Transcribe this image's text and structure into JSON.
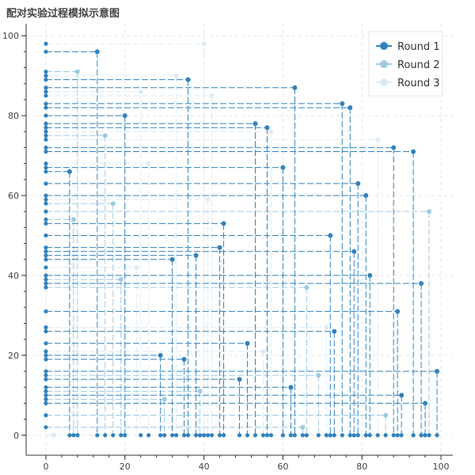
{
  "chart_data": {
    "type": "scatter",
    "title": "配对实验过程模拟示意图",
    "xlabel": "",
    "ylabel": "",
    "xlim": [
      -5,
      103
    ],
    "ylim": [
      -5,
      103
    ],
    "x_ticks": [
      0,
      20,
      40,
      60,
      80,
      100
    ],
    "y_ticks": [
      0,
      20,
      40,
      60,
      80,
      100
    ],
    "grid": true,
    "legend_position": "top-right",
    "series": [
      {
        "name": "Round 1",
        "color": "#3182bd",
        "points": [
          {
            "x": 13,
            "y": 96
          },
          {
            "x": 36,
            "y": 89
          },
          {
            "x": 63,
            "y": 87
          },
          {
            "x": 75,
            "y": 83
          },
          {
            "x": 77,
            "y": 82
          },
          {
            "x": 20,
            "y": 80
          },
          {
            "x": 53,
            "y": 78
          },
          {
            "x": 56,
            "y": 77
          },
          {
            "x": 88,
            "y": 72
          },
          {
            "x": 93,
            "y": 71
          },
          {
            "x": 60,
            "y": 67
          },
          {
            "x": 6,
            "y": 66
          },
          {
            "x": 79,
            "y": 63
          },
          {
            "x": 81,
            "y": 60
          },
          {
            "x": 45,
            "y": 53
          },
          {
            "x": 72,
            "y": 50
          },
          {
            "x": 44,
            "y": 47
          },
          {
            "x": 78,
            "y": 46
          },
          {
            "x": 38,
            "y": 45
          },
          {
            "x": 32,
            "y": 44
          },
          {
            "x": 82,
            "y": 40
          },
          {
            "x": 95,
            "y": 38
          },
          {
            "x": 89,
            "y": 31
          },
          {
            "x": 73,
            "y": 26
          },
          {
            "x": 51,
            "y": 23
          },
          {
            "x": 29,
            "y": 20
          },
          {
            "x": 35,
            "y": 19
          },
          {
            "x": 99,
            "y": 16
          },
          {
            "x": 49,
            "y": 14
          },
          {
            "x": 62,
            "y": 12
          },
          {
            "x": 90,
            "y": 10
          },
          {
            "x": 96,
            "y": 8
          }
        ]
      },
      {
        "name": "Round 2",
        "color": "#9ecae1",
        "points": [
          {
            "x": 8,
            "y": 91
          },
          {
            "x": 15,
            "y": 75
          },
          {
            "x": 17,
            "y": 58
          },
          {
            "x": 7,
            "y": 54
          },
          {
            "x": 19,
            "y": 39
          },
          {
            "x": 66,
            "y": 37
          },
          {
            "x": 69,
            "y": 15
          },
          {
            "x": 39,
            "y": 11
          },
          {
            "x": 30,
            "y": 9
          },
          {
            "x": 86,
            "y": 5
          },
          {
            "x": 65,
            "y": 2
          },
          {
            "x": 97,
            "y": 56
          }
        ]
      },
      {
        "name": "Round 3",
        "color": "#deebf7",
        "points": [
          {
            "x": 40,
            "y": 98
          },
          {
            "x": 33,
            "y": 90
          },
          {
            "x": 24,
            "y": 86
          },
          {
            "x": 42,
            "y": 85
          },
          {
            "x": 57,
            "y": 76
          },
          {
            "x": 84,
            "y": 74
          },
          {
            "x": 26,
            "y": 68
          },
          {
            "x": 41,
            "y": 59
          },
          {
            "x": 23,
            "y": 42
          },
          {
            "x": 71,
            "y": 27
          },
          {
            "x": 55,
            "y": 21
          },
          {
            "x": 2,
            "y": 0
          }
        ]
      }
    ],
    "axis_markers_x": [
      6,
      7,
      8,
      13,
      15,
      17,
      19,
      20,
      24,
      26,
      29,
      30,
      32,
      33,
      35,
      36,
      38,
      39,
      40,
      41,
      42,
      44,
      45,
      49,
      51,
      53,
      55,
      56,
      57,
      60,
      62,
      63,
      65,
      66,
      69,
      71,
      72,
      73,
      75,
      77,
      78,
      79,
      81,
      82,
      84,
      86,
      88,
      89,
      90,
      93,
      95,
      96,
      97,
      99
    ],
    "axis_markers_y": [
      2,
      5,
      8,
      9,
      10,
      11,
      12,
      14,
      15,
      16,
      19,
      20,
      21,
      23,
      26,
      27,
      31,
      37,
      38,
      39,
      40,
      42,
      44,
      45,
      46,
      47,
      50,
      53,
      54,
      56,
      58,
      59,
      60,
      63,
      66,
      67,
      68,
      71,
      72,
      74,
      75,
      76,
      77,
      78,
      80,
      82,
      83,
      85,
      86,
      87,
      89,
      90,
      91,
      96,
      98
    ]
  }
}
